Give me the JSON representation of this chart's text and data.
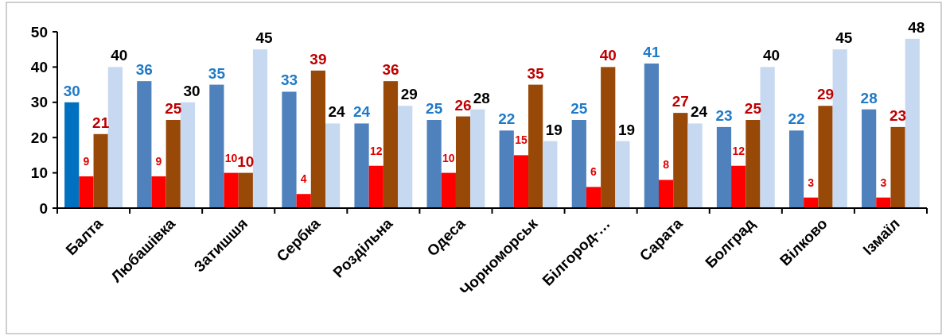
{
  "chart_data": {
    "type": "bar",
    "categories": [
      "Балта",
      "Любашівка",
      "Затишшя",
      "Сербка",
      "Роздільна",
      "Одеса",
      "Чорноморськ",
      "Білгород-…",
      "Сарата",
      "Болград",
      "Вілково",
      "Ізмаїл"
    ],
    "series": [
      {
        "colors": [
          "#0070c0",
          "#4f81bd",
          "#4f81bd",
          "#4f81bd",
          "#4f81bd",
          "#4f81bd",
          "#4f81bd",
          "#4f81bd",
          "#4f81bd",
          "#4f81bd",
          "#4f81bd",
          "#4f81bd"
        ],
        "values": [
          30,
          36,
          35,
          33,
          24,
          25,
          22,
          25,
          41,
          23,
          22,
          28
        ]
      },
      {
        "color": "#ff0000",
        "values": [
          9,
          9,
          10,
          4,
          12,
          10,
          15,
          6,
          8,
          12,
          3,
          3
        ]
      },
      {
        "color": "#984807",
        "values": [
          21,
          25,
          10,
          39,
          36,
          26,
          35,
          40,
          27,
          25,
          29,
          23
        ]
      },
      {
        "color": "#c6d9f1",
        "values": [
          40,
          30,
          45,
          24,
          29,
          28,
          19,
          19,
          24,
          40,
          45,
          48
        ]
      }
    ],
    "ylim": [
      0,
      50
    ],
    "yticks": [
      0,
      10,
      20,
      30,
      40,
      50
    ],
    "data_labels": true
  }
}
